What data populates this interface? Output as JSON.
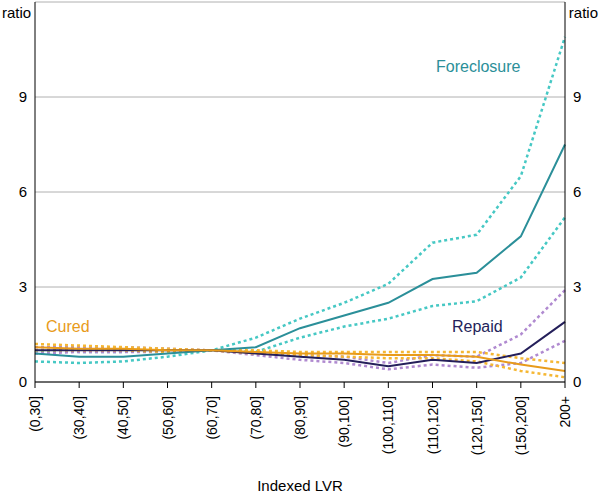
{
  "chart_data": {
    "type": "line",
    "x_label": "Indexed LVR",
    "y_label": "ratio",
    "y2_label": "ratio",
    "categories": [
      "(0,30]",
      "(30,40]",
      "(40,50]",
      "(50,60]",
      "(60,70]",
      "(70,80]",
      "(80,90]",
      "(90,100]",
      "(100,110]",
      "(110,120]",
      "(120,150]",
      "(150,200]",
      "200+"
    ],
    "ylim": [
      0,
      12
    ],
    "yticks": [
      0,
      3,
      6,
      9
    ],
    "y2lim": [
      0,
      12
    ],
    "y2ticks": [
      0,
      3,
      6,
      9
    ],
    "grid": true,
    "series": [
      {
        "name": "Foreclosure",
        "color": "#2b8f99",
        "line_style": "solid",
        "values": [
          0.9,
          0.8,
          0.8,
          0.9,
          1,
          1.1,
          1.7,
          2.1,
          2.5,
          3.25,
          3.45,
          4.6,
          7.5
        ],
        "upper": [
          1.0,
          0.95,
          0.95,
          1.0,
          1,
          1.4,
          2.0,
          2.5,
          3.1,
          4.4,
          4.65,
          6.5,
          10.9
        ],
        "lower": [
          0.65,
          0.6,
          0.65,
          0.8,
          1,
          0.95,
          1.4,
          1.75,
          2.0,
          2.4,
          2.55,
          3.3,
          5.2
        ]
      },
      {
        "name": "Repaid",
        "color": "#241f5a",
        "line_style": "solid",
        "values": [
          1.0,
          1.0,
          1.0,
          1.0,
          1,
          0.9,
          0.8,
          0.7,
          0.5,
          0.7,
          0.6,
          0.9,
          1.9
        ],
        "upper": [
          1.1,
          1.1,
          1.1,
          1.05,
          1,
          0.95,
          0.85,
          0.8,
          0.6,
          0.85,
          0.8,
          1.5,
          2.9
        ],
        "lower": [
          0.9,
          0.95,
          0.95,
          0.95,
          1,
          0.85,
          0.7,
          0.6,
          0.4,
          0.55,
          0.45,
          0.6,
          1.3
        ]
      },
      {
        "name": "Cured",
        "color": "#e89b1a",
        "line_style": "solid",
        "values": [
          1.1,
          1.05,
          1.05,
          1.0,
          1,
          0.95,
          0.9,
          0.9,
          0.85,
          0.85,
          0.8,
          0.55,
          0.35
        ],
        "upper": [
          1.2,
          1.15,
          1.1,
          1.05,
          1,
          1.0,
          0.95,
          0.95,
          0.95,
          0.95,
          0.95,
          0.75,
          0.6
        ],
        "lower": [
          1.0,
          1.0,
          1.0,
          0.95,
          1,
          0.9,
          0.85,
          0.8,
          0.75,
          0.75,
          0.65,
          0.35,
          0.15
        ]
      }
    ]
  }
}
